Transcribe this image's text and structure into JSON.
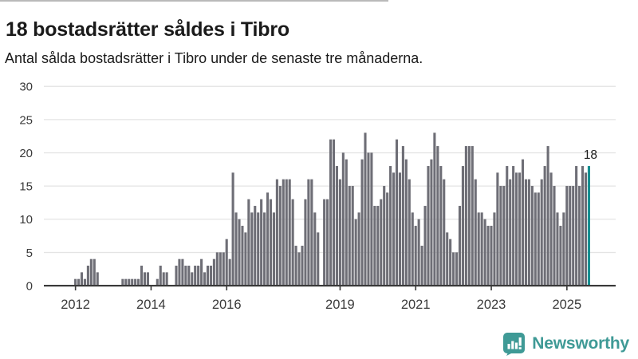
{
  "header": {
    "title": "18 bostadsrätter såldes i Tibro",
    "subtitle": "Antal sålda bostadsrätter i Tibro under de senaste tre månaderna."
  },
  "chart_data": {
    "type": "bar",
    "title": "18 bostadsrätter såldes i Tibro",
    "subtitle": "Antal sålda bostadsrätter i Tibro under de senaste tre månaderna.",
    "x_axis": {
      "start_month": "2011-04",
      "interval": "monthly",
      "tick_labels": [
        "2012",
        "2014",
        "2016",
        "2019",
        "2021",
        "2023",
        "2025"
      ]
    },
    "y_axis": {
      "ticks": [
        0,
        5,
        10,
        15,
        20,
        25,
        30
      ],
      "range": [
        0,
        30
      ],
      "gridlines": true
    },
    "values": [
      0,
      0,
      0,
      0,
      0,
      0,
      0,
      0,
      0,
      1,
      1,
      2,
      1,
      3,
      4,
      4,
      2,
      0,
      0,
      0,
      0,
      0,
      0,
      0,
      1,
      1,
      1,
      1,
      1,
      1,
      3,
      2,
      2,
      0,
      0,
      1,
      3,
      2,
      2,
      0,
      0,
      3,
      4,
      4,
      3,
      3,
      2,
      3,
      3,
      4,
      2,
      3,
      3,
      4,
      5,
      5,
      5,
      7,
      4,
      17,
      11,
      10,
      9,
      8,
      13,
      11,
      12,
      11,
      13,
      11,
      14,
      13,
      11,
      16,
      15,
      16,
      16,
      16,
      13,
      6,
      5,
      6,
      13,
      16,
      16,
      11,
      8,
      0,
      13,
      13,
      22,
      22,
      18,
      16,
      20,
      19,
      15,
      15,
      10,
      11,
      19,
      23,
      20,
      20,
      12,
      12,
      13,
      15,
      14,
      18,
      17,
      22,
      17,
      21,
      19,
      16,
      11,
      9,
      10,
      6,
      12,
      18,
      19,
      23,
      21,
      18,
      16,
      8,
      7,
      5,
      5,
      12,
      18,
      21,
      21,
      21,
      16,
      11,
      11,
      10,
      9,
      9,
      11,
      17,
      15,
      15,
      18,
      16,
      18,
      17,
      17,
      19,
      16,
      16,
      15,
      14,
      14,
      16,
      18,
      21,
      17,
      15,
      11,
      9,
      11,
      15,
      15,
      15,
      18,
      15,
      18,
      17,
      18
    ],
    "bar_color": "#6e6e76",
    "highlight": {
      "position": "last",
      "color": "#168f91",
      "label": "18"
    },
    "axis_color": "#3a3a3a",
    "gridline_color": "#e4e4e4",
    "legend": "none"
  },
  "branding": {
    "logo_text": "Newsworthy",
    "logo_color": "#3f9a96"
  }
}
